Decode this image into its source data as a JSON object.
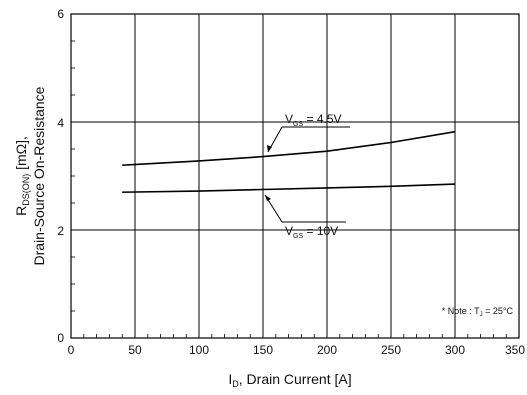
{
  "chart_data": {
    "type": "line",
    "xlabel": "I",
    "xlabel_sub": "D",
    "xlabel_rest": ", Drain Current [A]",
    "ylabel_line1_main": "R",
    "ylabel_line1_sub": "DS(ON)",
    "ylabel_line1_rest": " [mΩ],",
    "ylabel_line2": "Drain-Source On-Resistance",
    "xlim": [
      0,
      350
    ],
    "ylim": [
      0,
      6
    ],
    "x_ticks": [
      "0",
      "50",
      "100",
      "150",
      "200",
      "250",
      "300",
      "350"
    ],
    "y_ticks": [
      "0",
      "2",
      "4",
      "6"
    ],
    "grid": true,
    "series": [
      {
        "label_main": "V",
        "label_sub": "GS",
        "label_rest": " = 4.5V",
        "x": [
          40,
          100,
          150,
          200,
          250,
          300
        ],
        "y": [
          3.2,
          3.28,
          3.36,
          3.46,
          3.62,
          3.82
        ]
      },
      {
        "label_main": "V",
        "label_sub": "GS",
        "label_rest": " = 10V",
        "x": [
          40,
          100,
          150,
          200,
          250,
          300
        ],
        "y": [
          2.7,
          2.72,
          2.75,
          2.78,
          2.81,
          2.85
        ]
      }
    ],
    "note": {
      "prefix": "* Note : T",
      "sub": "J",
      "suffix": " = 25°C"
    }
  }
}
